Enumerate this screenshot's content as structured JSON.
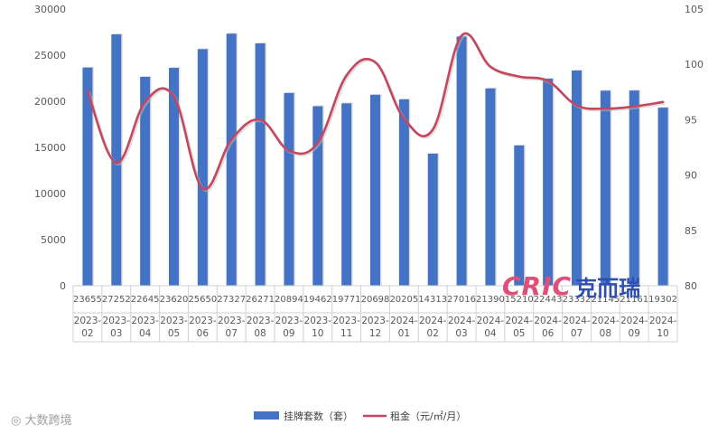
{
  "chart_data": {
    "type": "bar",
    "categories": [
      {
        "top": "2023-",
        "bottom": "02"
      },
      {
        "top": "2023-",
        "bottom": "03"
      },
      {
        "top": "2023-",
        "bottom": "04"
      },
      {
        "top": "2023-",
        "bottom": "05"
      },
      {
        "top": "2023-",
        "bottom": "06"
      },
      {
        "top": "2023-",
        "bottom": "07"
      },
      {
        "top": "2023-",
        "bottom": "08"
      },
      {
        "top": "2023-",
        "bottom": "09"
      },
      {
        "top": "2023-",
        "bottom": "10"
      },
      {
        "top": "2023-",
        "bottom": "11"
      },
      {
        "top": "2023-",
        "bottom": "12"
      },
      {
        "top": "2024-",
        "bottom": "01"
      },
      {
        "top": "2024-",
        "bottom": "02"
      },
      {
        "top": "2024-",
        "bottom": "03"
      },
      {
        "top": "2024-",
        "bottom": "04"
      },
      {
        "top": "2024-",
        "bottom": "05"
      },
      {
        "top": "2024-",
        "bottom": "06"
      },
      {
        "top": "2024-",
        "bottom": "07"
      },
      {
        "top": "2024-",
        "bottom": "08"
      },
      {
        "top": "2024-",
        "bottom": "09"
      },
      {
        "top": "2024-",
        "bottom": "10"
      }
    ],
    "series": [
      {
        "name": "挂牌套数（套）",
        "type": "bar",
        "axis": "left",
        "color": "#4472c4",
        "values": [
          23655,
          27252,
          22645,
          23620,
          25650,
          27327,
          26271,
          20894,
          19462,
          19771,
          20698,
          20205,
          14313,
          27016,
          21390,
          15210,
          22443,
          23332,
          21145,
          21161,
          19302
        ]
      },
      {
        "name": "租金（元/㎡/月）",
        "type": "line",
        "axis": "right",
        "color": "#c5475f",
        "values": [
          97.6,
          91.1,
          96.6,
          97.1,
          88.8,
          93.2,
          95.0,
          92.2,
          92.9,
          99.0,
          100.2,
          95.1,
          94.1,
          102.6,
          99.8,
          98.9,
          98.5,
          96.3,
          96.0,
          96.2,
          96.6
        ]
      }
    ],
    "yaxis_left": {
      "min": 0,
      "max": 30000,
      "ticks": [
        "0",
        "5000",
        "10000",
        "15000",
        "20000",
        "25000",
        "30000"
      ]
    },
    "yaxis_right": {
      "min": 80,
      "max": 105,
      "ticks": [
        "80",
        "85",
        "90",
        "95",
        "100",
        "105"
      ]
    },
    "legend_position": "bottom",
    "gridlines": false,
    "data_table": true
  },
  "watermarks": {
    "left": "大数跨境",
    "right_brand": "CRIC",
    "right_cn": "克而瑞"
  },
  "colors": {
    "bar": "#4472c4",
    "line": "#c5475f",
    "axis_text": "#595959",
    "table_border": "#d0d0d0"
  }
}
